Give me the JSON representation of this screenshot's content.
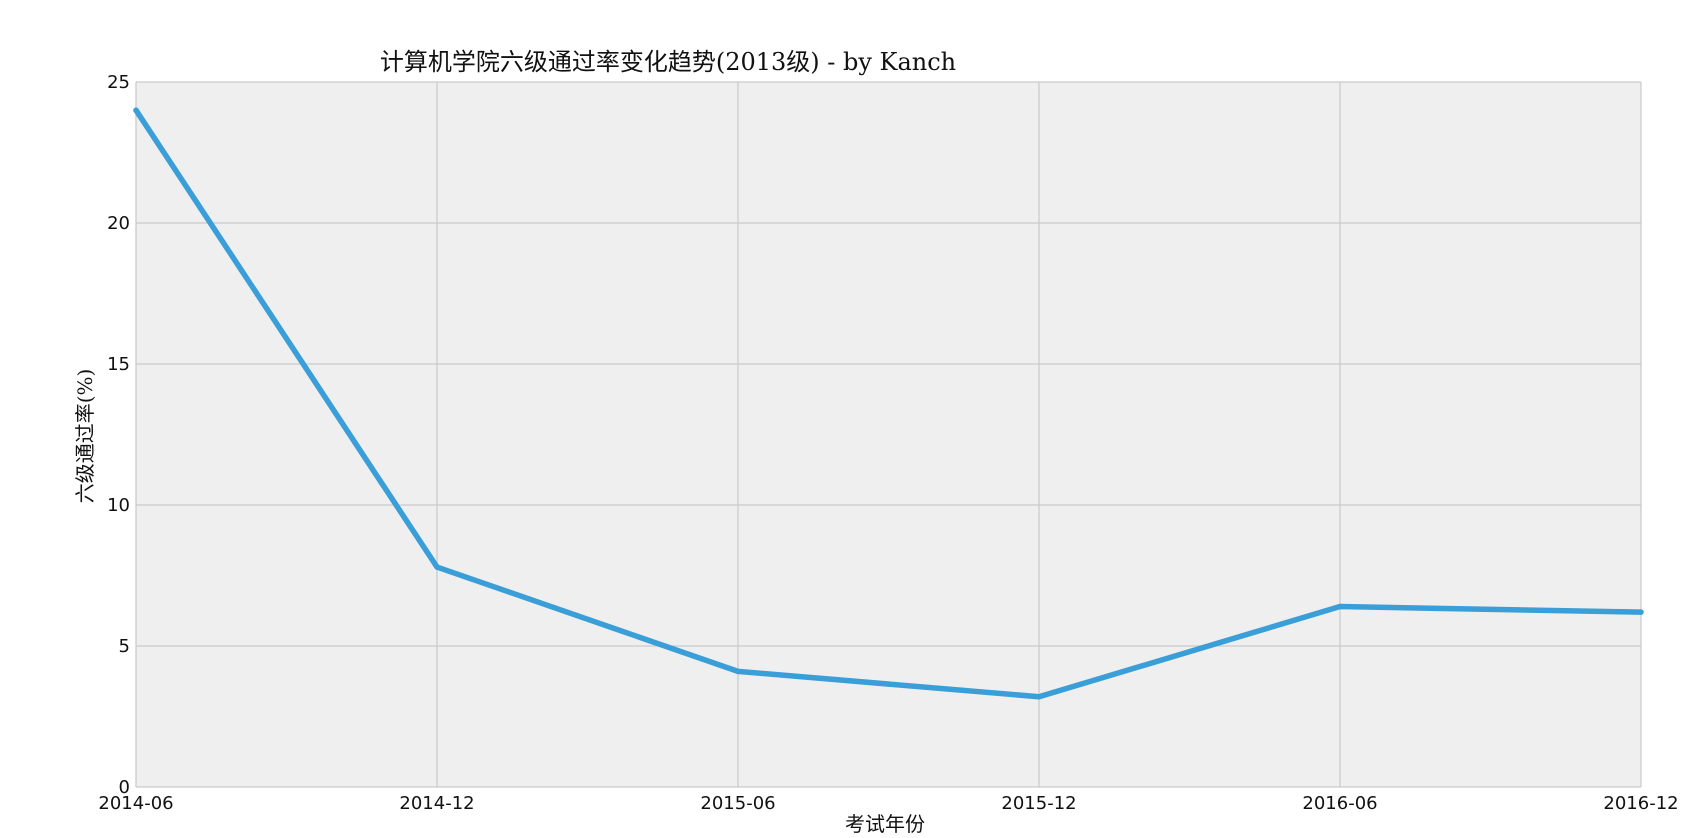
{
  "chart_data": {
    "type": "line",
    "title": "计算机学院六级通过率变化趋势(2013级) - by Kanch",
    "xlabel": "考试年份",
    "ylabel": "六级通过率(%)",
    "categories": [
      "2014-06",
      "2014-12",
      "2015-06",
      "2015-12",
      "2016-06",
      "2016-12"
    ],
    "series": [
      {
        "values": [
          24.0,
          7.8,
          4.1,
          3.2,
          6.4,
          6.2
        ],
        "color": "#3a9ed8"
      }
    ],
    "ylim": [
      0,
      25
    ],
    "yticks": [
      0,
      5,
      10,
      15,
      20,
      25
    ],
    "grid": true,
    "plot_background": "#efefef",
    "grid_color": "#cbcbcb"
  }
}
